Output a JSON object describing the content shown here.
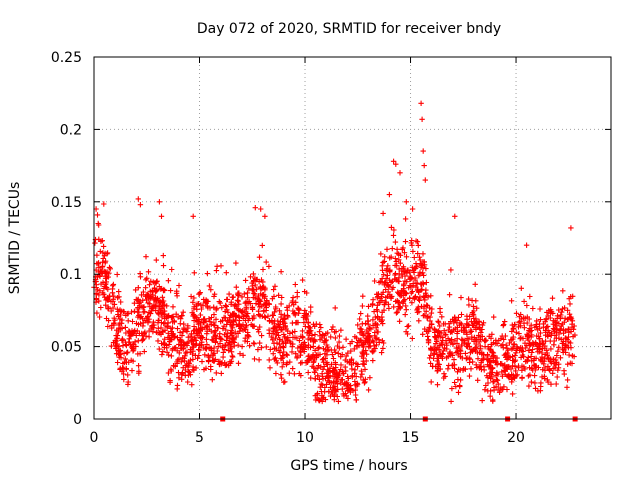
{
  "chart_data": {
    "type": "scatter",
    "title": "Day 072 of 2020, SRMTID for receiver bndy",
    "xlabel": "GPS time / hours",
    "ylabel": "SRMTID / TECUs",
    "xlim": [
      0,
      24.5
    ],
    "ylim": [
      0,
      0.25
    ],
    "x_ticks": [
      0,
      5,
      10,
      15,
      20
    ],
    "x_tick_labels": [
      "0",
      "5",
      "10",
      "15",
      "20"
    ],
    "y_ticks": [
      0,
      0.05,
      0.1,
      0.15,
      0.2,
      0.25
    ],
    "y_tick_labels": [
      "0",
      "0.05",
      "0.1",
      "0.15",
      "0.2",
      "0.25"
    ],
    "grid": true,
    "marker": "+",
    "color": "#ff0000",
    "zero_markers": [
      6.1,
      15.7,
      19.6,
      22.8
    ],
    "trend_profile": [
      [
        0.0,
        0.1
      ],
      [
        0.5,
        0.1
      ],
      [
        1.0,
        0.06
      ],
      [
        1.5,
        0.045
      ],
      [
        2.0,
        0.06
      ],
      [
        2.5,
        0.075
      ],
      [
        3.0,
        0.08
      ],
      [
        3.5,
        0.06
      ],
      [
        4.0,
        0.05
      ],
      [
        4.5,
        0.05
      ],
      [
        5.0,
        0.065
      ],
      [
        5.5,
        0.06
      ],
      [
        6.0,
        0.055
      ],
      [
        6.5,
        0.06
      ],
      [
        7.0,
        0.07
      ],
      [
        7.5,
        0.08
      ],
      [
        8.0,
        0.08
      ],
      [
        8.5,
        0.06
      ],
      [
        9.0,
        0.055
      ],
      [
        9.5,
        0.06
      ],
      [
        10.0,
        0.065
      ],
      [
        10.5,
        0.04
      ],
      [
        11.0,
        0.035
      ],
      [
        11.5,
        0.03
      ],
      [
        12.0,
        0.03
      ],
      [
        12.5,
        0.04
      ],
      [
        13.0,
        0.05
      ],
      [
        13.5,
        0.075
      ],
      [
        14.0,
        0.1
      ],
      [
        14.5,
        0.095
      ],
      [
        15.0,
        0.09
      ],
      [
        15.5,
        0.1
      ],
      [
        16.0,
        0.05
      ],
      [
        16.5,
        0.05
      ],
      [
        17.0,
        0.05
      ],
      [
        17.5,
        0.05
      ],
      [
        18.0,
        0.06
      ],
      [
        18.5,
        0.04
      ],
      [
        19.0,
        0.035
      ],
      [
        19.5,
        0.04
      ],
      [
        20.0,
        0.05
      ],
      [
        20.5,
        0.05
      ],
      [
        21.0,
        0.045
      ],
      [
        21.5,
        0.05
      ],
      [
        22.0,
        0.05
      ],
      [
        22.5,
        0.06
      ],
      [
        22.8,
        0.05
      ]
    ],
    "spread": 0.02,
    "point_count": 2600,
    "outliers": [
      [
        0.1,
        0.145
      ],
      [
        0.2,
        0.135
      ],
      [
        2.1,
        0.152
      ],
      [
        2.2,
        0.148
      ],
      [
        3.1,
        0.15
      ],
      [
        3.2,
        0.14
      ],
      [
        4.7,
        0.14
      ],
      [
        7.9,
        0.145
      ],
      [
        8.1,
        0.14
      ],
      [
        13.7,
        0.142
      ],
      [
        14.0,
        0.155
      ],
      [
        14.2,
        0.178
      ],
      [
        14.3,
        0.176
      ],
      [
        14.5,
        0.17
      ],
      [
        14.8,
        0.15
      ],
      [
        15.1,
        0.145
      ],
      [
        15.5,
        0.218
      ],
      [
        15.55,
        0.207
      ],
      [
        15.6,
        0.185
      ],
      [
        15.65,
        0.175
      ],
      [
        15.7,
        0.165
      ],
      [
        17.1,
        0.14
      ],
      [
        20.5,
        0.12
      ],
      [
        22.6,
        0.132
      ]
    ]
  }
}
